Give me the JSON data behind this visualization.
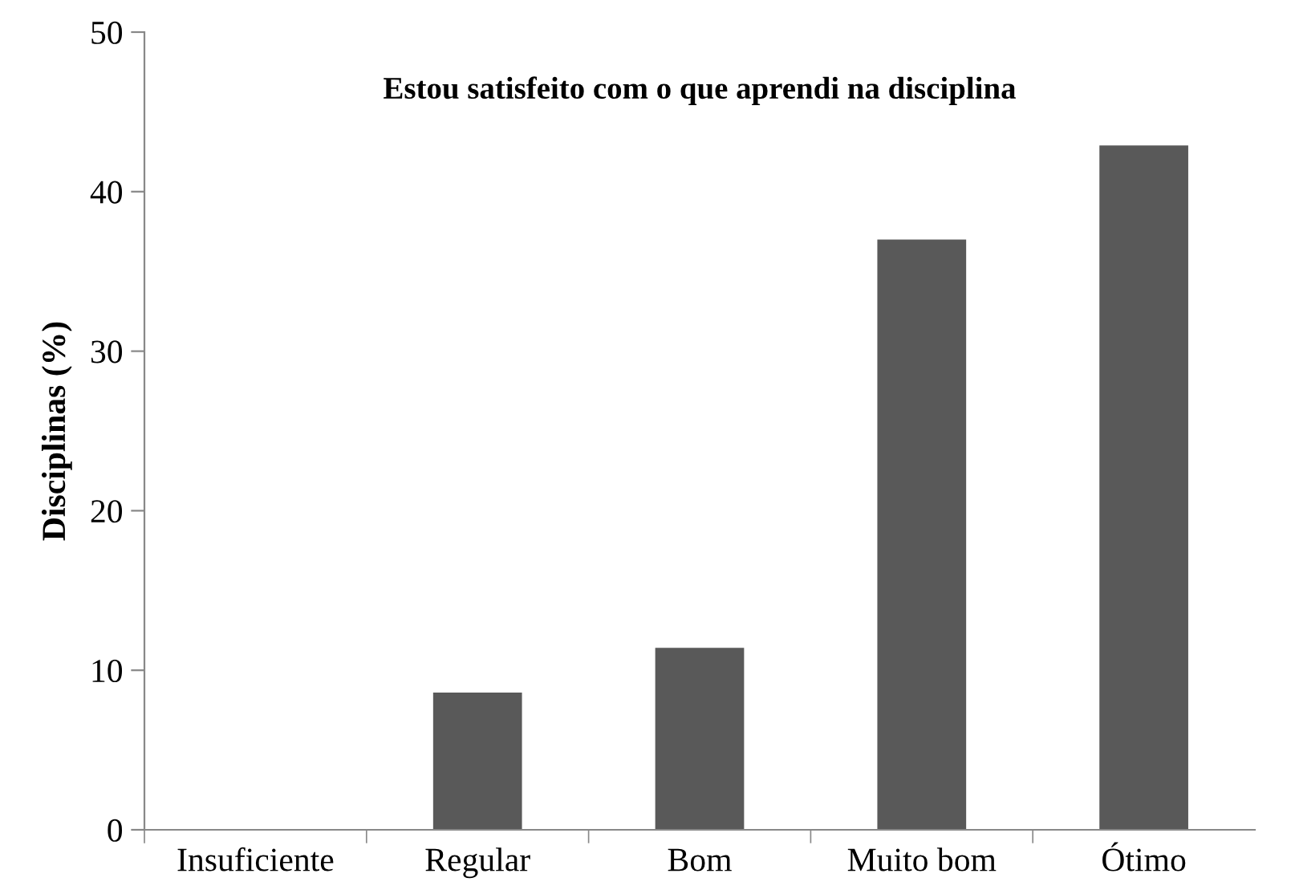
{
  "chart_data": {
    "type": "bar",
    "title": "Estou satisfeito com o que aprendi na disciplina",
    "ylabel": "Disciplinas (%)",
    "categories": [
      "Insuficiente",
      "Regular",
      "Bom",
      "Muito bom",
      "Ótimo"
    ],
    "values": [
      0,
      8.6,
      11.4,
      37.0,
      42.9
    ],
    "color": "#595959",
    "ylim": [
      0,
      50
    ],
    "yticks": [
      0,
      10,
      20,
      30,
      40,
      50
    ],
    "grid": false,
    "legend": false
  }
}
